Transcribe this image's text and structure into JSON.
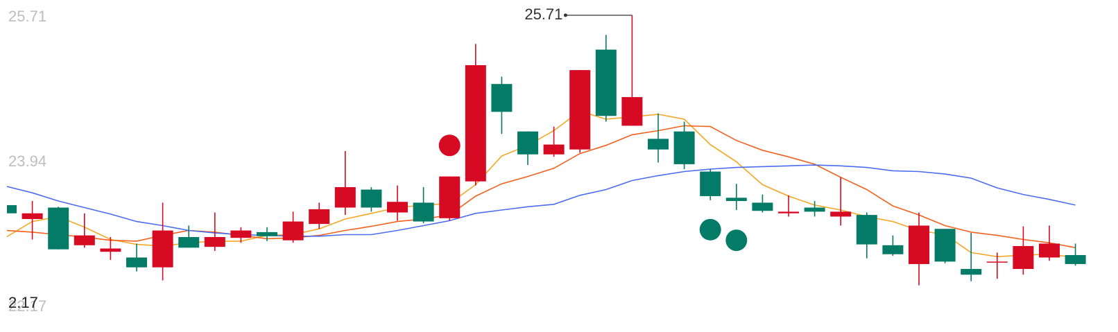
{
  "chart_data": {
    "type": "candlestick",
    "open": [
      23.39,
      23.22,
      23.36,
      22.9,
      22.82,
      22.75,
      22.63,
      23.0,
      22.88,
      22.99,
      23.06,
      22.96,
      23.16,
      23.36,
      23.58,
      23.3,
      23.42,
      23.23,
      23.68,
      24.87,
      24.29,
      24.01,
      24.07,
      25.29,
      24.36,
      24.2,
      24.29,
      23.8,
      23.48,
      23.42,
      23.29,
      23.36,
      23.25,
      23.27,
      22.9,
      22.67,
      23.1,
      22.61,
      22.69,
      22.61,
      22.75,
      22.78
    ],
    "high": [
      23.39,
      23.44,
      23.37,
      23.29,
      23.0,
      22.92,
      23.42,
      23.14,
      23.3,
      23.12,
      23.12,
      23.31,
      23.42,
      24.05,
      23.61,
      23.63,
      23.61,
      23.74,
      25.36,
      24.96,
      24.29,
      24.35,
      25.04,
      25.47,
      25.71,
      24.51,
      24.41,
      23.83,
      23.65,
      23.52,
      23.51,
      23.44,
      23.73,
      23.3,
      23.02,
      23.3,
      23.1,
      23.05,
      22.81,
      23.13,
      23.14,
      22.92
    ],
    "low": [
      23.29,
      22.97,
      22.85,
      22.87,
      22.72,
      22.58,
      22.47,
      22.87,
      22.83,
      22.93,
      22.95,
      22.93,
      23.1,
      23.27,
      23.31,
      23.2,
      23.17,
      23.2,
      23.63,
      24.26,
      23.88,
      23.98,
      24.03,
      24.41,
      24.36,
      23.91,
      23.83,
      23.45,
      23.33,
      23.3,
      23.25,
      23.25,
      23.14,
      22.74,
      22.77,
      22.41,
      22.68,
      22.46,
      22.49,
      22.54,
      22.71,
      22.65
    ],
    "close": [
      23.29,
      23.29,
      22.85,
      23.02,
      22.86,
      22.63,
      23.08,
      22.87,
      23.0,
      23.08,
      23.01,
      23.19,
      23.34,
      23.61,
      23.36,
      23.43,
      23.19,
      23.74,
      25.1,
      24.53,
      24.01,
      24.13,
      25.04,
      24.48,
      24.71,
      24.07,
      23.89,
      23.5,
      23.44,
      23.32,
      23.31,
      23.31,
      23.31,
      22.91,
      22.79,
      23.14,
      22.7,
      22.54,
      22.7,
      22.89,
      22.92,
      22.67
    ],
    "up_color": "#d60a22",
    "down_color": "#037b66",
    "lines": [
      {
        "color": "#f5a623",
        "values": [
          23.0,
          23.19,
          23.25,
          23.12,
          22.97,
          22.91,
          22.89,
          22.93,
          22.95,
          22.95,
          23.02,
          23.03,
          23.1,
          23.22,
          23.29,
          23.36,
          23.39,
          23.41,
          23.64,
          23.99,
          24.12,
          24.3,
          24.54,
          24.44,
          24.47,
          24.5,
          24.44,
          24.13,
          23.92,
          23.64,
          23.5,
          23.39,
          23.33,
          23.25,
          23.19,
          23.08,
          23.03,
          22.81,
          22.76,
          22.78,
          22.79,
          22.75
        ]
      },
      {
        "color": "#f2611c",
        "values": [
          23.08,
          23.06,
          23.03,
          23.0,
          22.96,
          22.95,
          23.02,
          23.08,
          23.06,
          23.02,
          22.98,
          22.99,
          23.02,
          23.08,
          23.13,
          23.19,
          23.22,
          23.27,
          23.5,
          23.65,
          23.74,
          23.84,
          24.02,
          24.12,
          24.25,
          24.3,
          24.36,
          24.35,
          24.18,
          24.06,
          23.98,
          23.89,
          23.73,
          23.58,
          23.38,
          23.27,
          23.14,
          23.06,
          23.02,
          22.97,
          22.93,
          22.87
        ]
      },
      {
        "color": "#4a6cf0",
        "values": [
          23.62,
          23.54,
          23.44,
          23.36,
          23.28,
          23.19,
          23.14,
          23.08,
          23.05,
          23.03,
          23.02,
          23.01,
          23.01,
          23.03,
          23.03,
          23.08,
          23.14,
          23.2,
          23.29,
          23.33,
          23.37,
          23.4,
          23.51,
          23.58,
          23.69,
          23.75,
          23.8,
          23.83,
          23.85,
          23.86,
          23.87,
          23.88,
          23.87,
          23.85,
          23.81,
          23.8,
          23.77,
          23.72,
          23.6,
          23.52,
          23.46,
          23.39
        ]
      }
    ],
    "markers": [
      {
        "at": 17,
        "value": 24.12,
        "color": "#d60a22"
      },
      {
        "at": 27,
        "value": 23.09,
        "color": "#037b66"
      },
      {
        "at": 28,
        "value": 22.96,
        "color": "#037b66"
      }
    ],
    "high_label": "25.71",
    "annotations": [
      "2.17"
    ],
    "ylim": [
      22.17,
      25.71
    ],
    "yticks": [
      25.71,
      23.94,
      22.17
    ],
    "grid": false
  }
}
